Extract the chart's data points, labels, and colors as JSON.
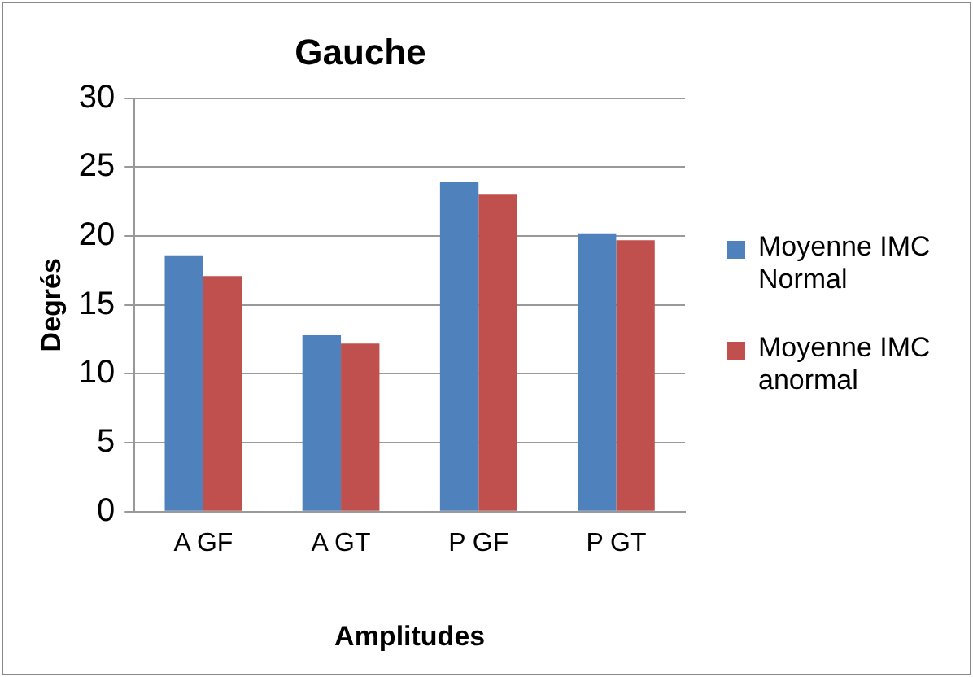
{
  "chart_data": {
    "type": "bar",
    "title": "Gauche",
    "xlabel": "Amplitudes",
    "ylabel": "Degrés",
    "categories": [
      "A GF",
      "A GT",
      "P GF",
      "P GT"
    ],
    "series": [
      {
        "name": "Moyenne IMC Normal",
        "color": "#4f81bd",
        "values": [
          18.6,
          12.8,
          23.9,
          20.2
        ]
      },
      {
        "name": "Moyenne IMC anormal",
        "color": "#c0504d",
        "values": [
          17.1,
          12.2,
          23.0,
          19.7
        ]
      }
    ],
    "ylim": [
      0,
      30
    ],
    "yticks": [
      0,
      5,
      10,
      15,
      20,
      25,
      30
    ],
    "grid": "y",
    "legend": "right"
  }
}
